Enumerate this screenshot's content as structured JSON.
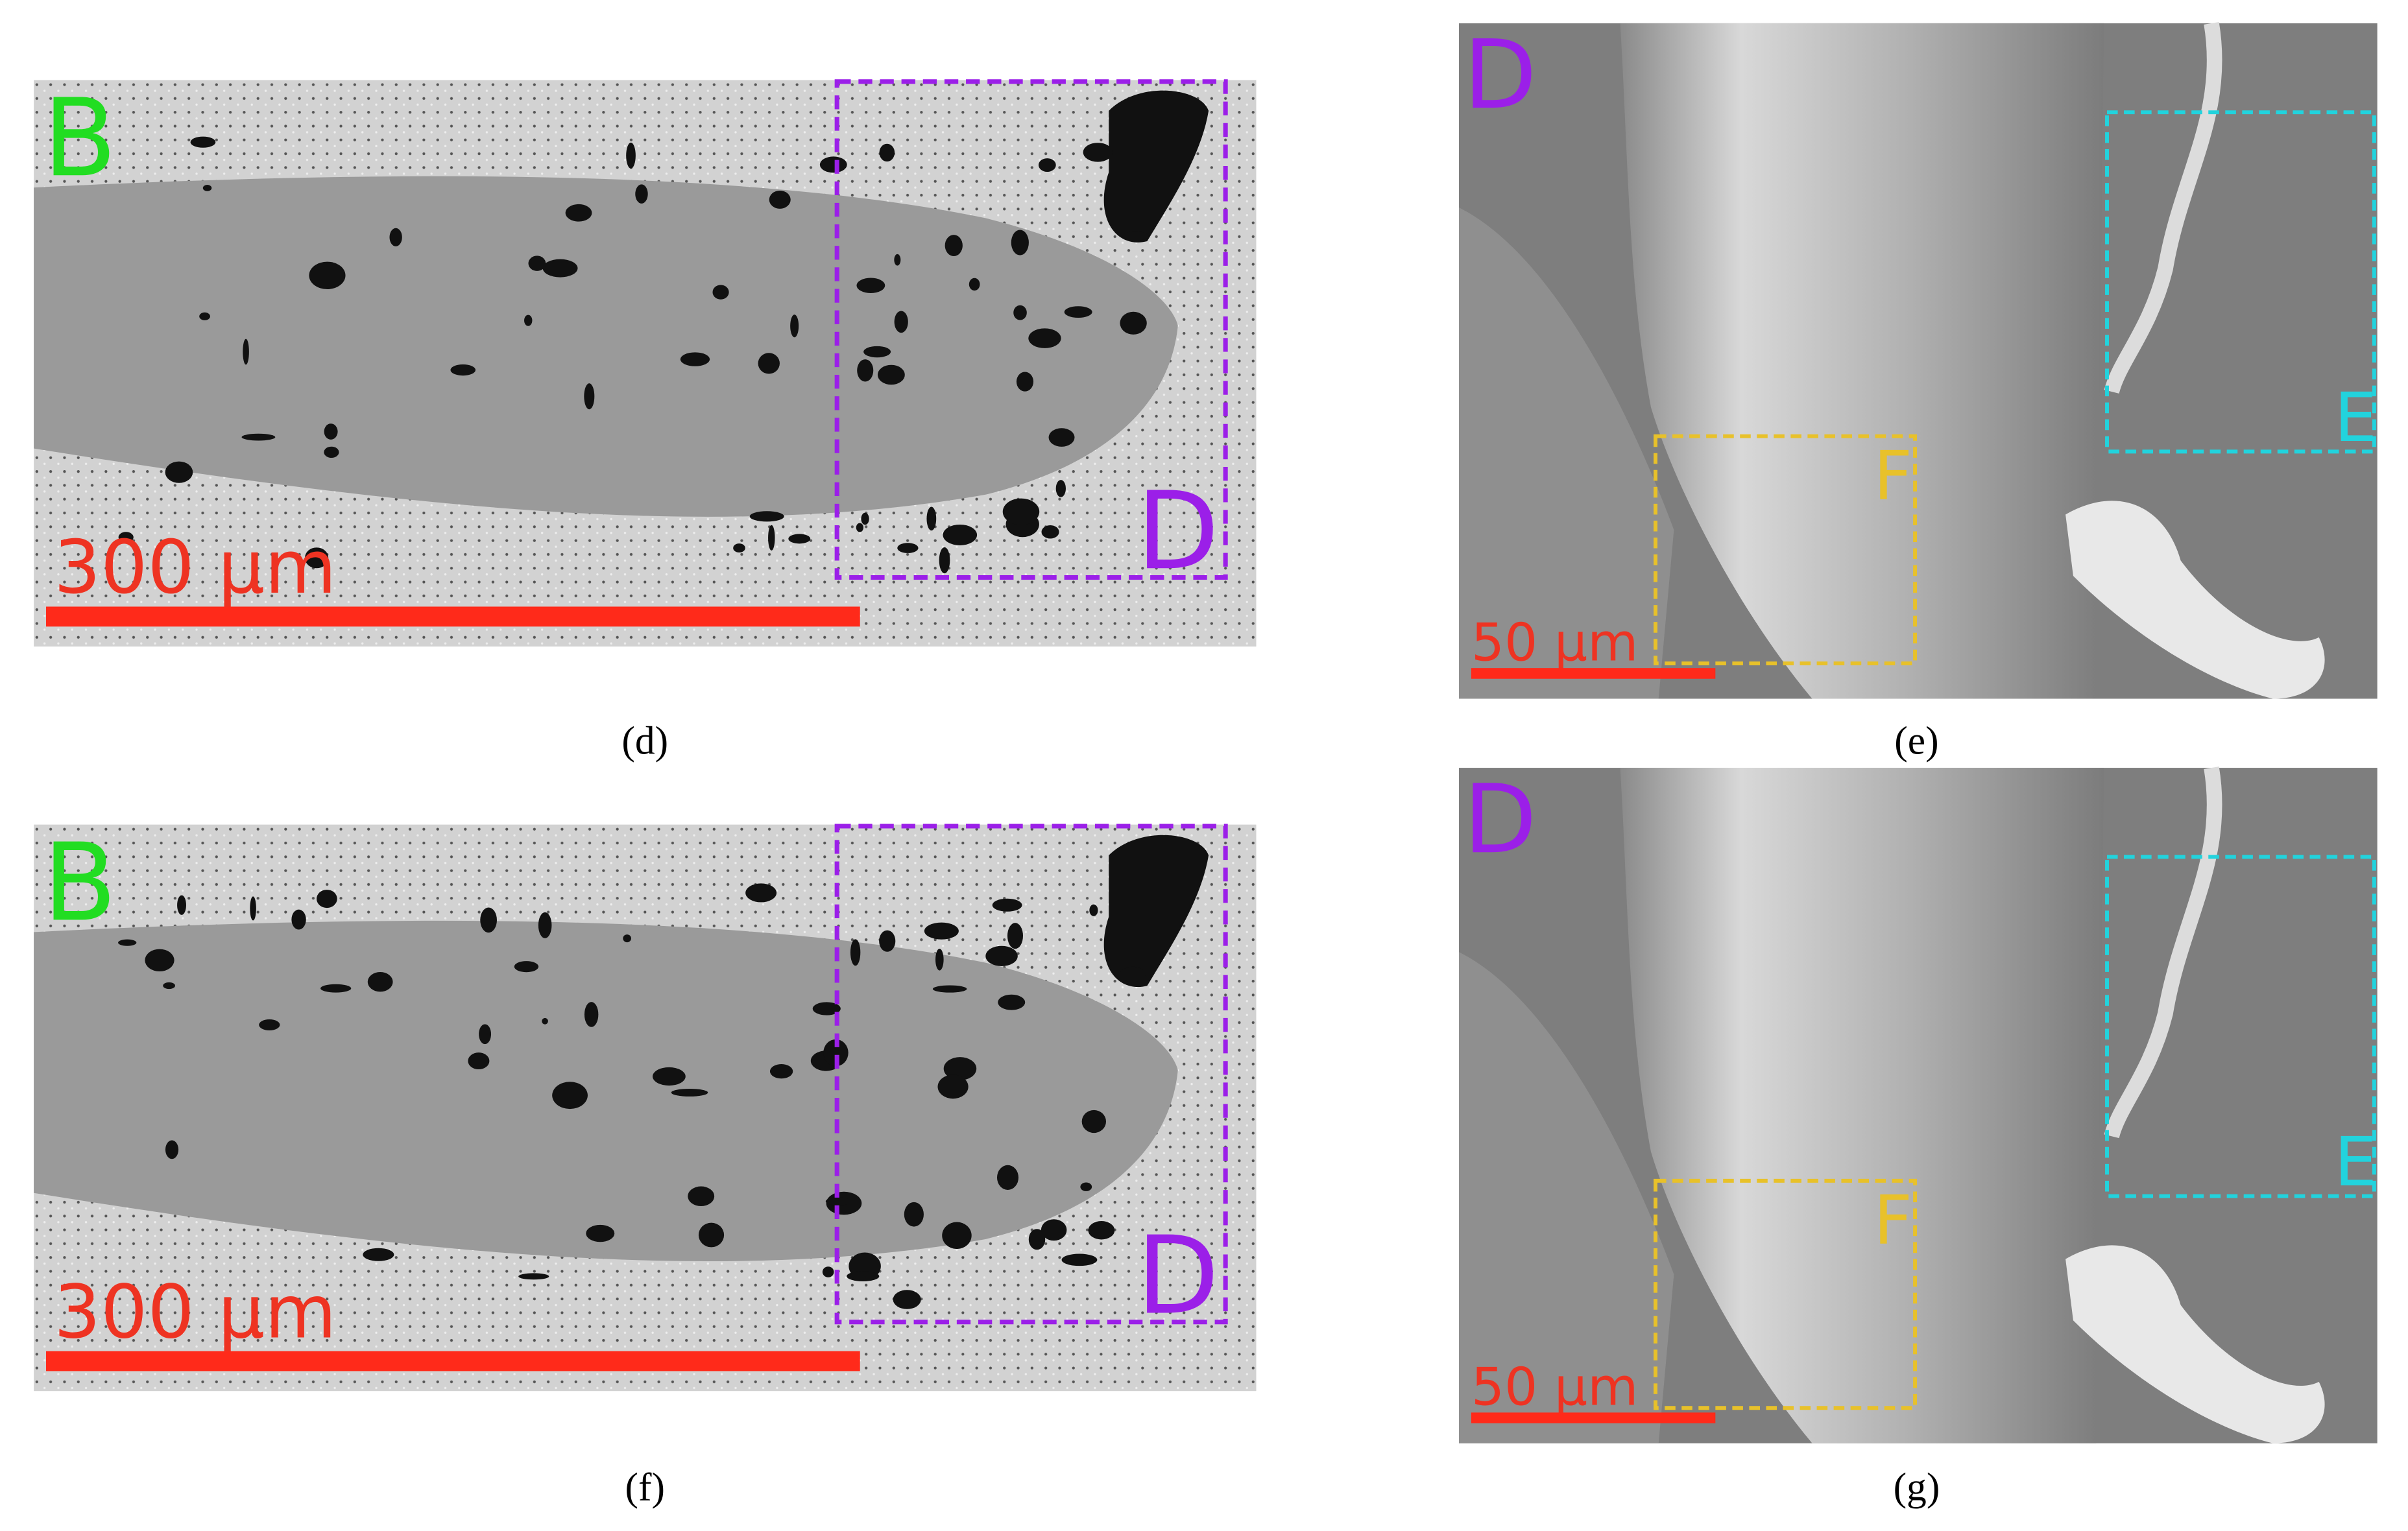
{
  "panels": [
    {
      "caption": "(d)",
      "labels": [
        "B",
        "D"
      ],
      "scale_bar": "300 µm"
    },
    {
      "caption": "(e)",
      "labels": [
        "D",
        "E",
        "F"
      ],
      "scale_bar": "50 µm"
    },
    {
      "caption": "(f)",
      "labels": [
        "B",
        "D"
      ],
      "scale_bar": "300 µm"
    },
    {
      "caption": "(g)",
      "labels": [
        "D",
        "E",
        "F"
      ],
      "scale_bar": "50 µm"
    }
  ]
}
